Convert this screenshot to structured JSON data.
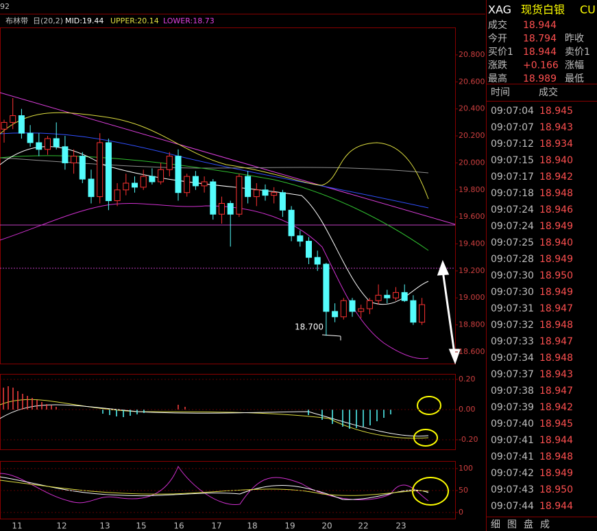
{
  "header": {
    "fragment": "92",
    "legend": {
      "name": "布林带",
      "params": "日(20,2)",
      "mid": "MID:19.44",
      "upper": "UPPER:20.14",
      "lower": "LOWER:18.73"
    }
  },
  "price_axis": [
    {
      "value": 20.8,
      "label": "20.800"
    },
    {
      "value": 20.6,
      "label": "20.600"
    },
    {
      "value": 20.4,
      "label": "20.400"
    },
    {
      "value": 20.2,
      "label": "20.200"
    },
    {
      "value": 20.0,
      "label": "20.000"
    },
    {
      "value": 19.8,
      "label": "19.800"
    },
    {
      "value": 19.6,
      "label": "19.600"
    },
    {
      "value": 19.4,
      "label": "19.400"
    },
    {
      "value": 19.2,
      "label": "19.200"
    },
    {
      "value": 19.0,
      "label": "19.000"
    },
    {
      "value": 18.8,
      "label": "18.800"
    },
    {
      "value": 18.6,
      "label": "18.600"
    }
  ],
  "annotation": {
    "value": 18.7,
    "label": "18.700"
  },
  "candles": [
    [
      20.25,
      20.32,
      20.15,
      20.3
    ],
    [
      20.3,
      20.48,
      20.25,
      20.35
    ],
    [
      20.35,
      20.4,
      20.18,
      20.22
    ],
    [
      20.22,
      20.28,
      20.12,
      20.15
    ],
    [
      20.15,
      20.22,
      20.05,
      20.1
    ],
    [
      20.1,
      20.2,
      20.06,
      20.18
    ],
    [
      20.18,
      20.3,
      20.1,
      20.12
    ],
    [
      20.12,
      20.2,
      19.95,
      20.0
    ],
    [
      20.0,
      20.1,
      19.92,
      20.05
    ],
    [
      20.05,
      20.08,
      19.85,
      19.88
    ],
    [
      19.88,
      19.95,
      19.7,
      19.75
    ],
    [
      19.75,
      20.22,
      19.7,
      20.15
    ],
    [
      20.15,
      20.18,
      19.65,
      19.72
    ],
    [
      19.72,
      19.85,
      19.68,
      19.8
    ],
    [
      19.8,
      19.92,
      19.76,
      19.85
    ],
    [
      19.85,
      19.9,
      19.78,
      19.82
    ],
    [
      19.82,
      19.95,
      19.8,
      19.9
    ],
    [
      19.9,
      19.96,
      19.84,
      19.86
    ],
    [
      19.86,
      20.0,
      19.84,
      19.95
    ],
    [
      19.95,
      20.08,
      19.9,
      20.05
    ],
    [
      20.05,
      20.1,
      19.72,
      19.78
    ],
    [
      19.78,
      19.92,
      19.75,
      19.9
    ],
    [
      19.9,
      19.94,
      19.8,
      19.83
    ],
    [
      19.83,
      19.9,
      19.78,
      19.86
    ],
    [
      19.86,
      19.88,
      19.58,
      19.62
    ],
    [
      19.62,
      19.75,
      19.55,
      19.7
    ],
    [
      19.7,
      19.72,
      19.38,
      19.62
    ],
    [
      19.62,
      19.92,
      19.6,
      19.9
    ],
    [
      19.9,
      19.94,
      19.7,
      19.75
    ],
    [
      19.75,
      19.85,
      19.68,
      19.8
    ],
    [
      19.8,
      19.84,
      19.72,
      19.76
    ],
    [
      19.76,
      19.82,
      19.7,
      19.78
    ],
    [
      19.78,
      19.8,
      19.6,
      19.65
    ],
    [
      19.65,
      19.68,
      19.42,
      19.46
    ],
    [
      19.46,
      19.5,
      19.38,
      19.42
    ],
    [
      19.42,
      19.45,
      19.25,
      19.3
    ],
    [
      19.3,
      19.35,
      19.2,
      19.25
    ],
    [
      19.25,
      19.26,
      18.72,
      18.9
    ],
    [
      18.9,
      18.96,
      18.82,
      18.86
    ],
    [
      18.86,
      19.0,
      18.84,
      18.98
    ],
    [
      18.98,
      19.0,
      18.86,
      18.9
    ],
    [
      18.9,
      18.95,
      18.85,
      18.92
    ],
    [
      18.92,
      19.0,
      18.88,
      18.98
    ],
    [
      18.98,
      19.1,
      18.95,
      19.02
    ],
    [
      19.02,
      19.06,
      18.96,
      19.0
    ],
    [
      19.0,
      19.08,
      18.98,
      19.04
    ],
    [
      19.04,
      19.1,
      18.97,
      18.98
    ],
    [
      18.98,
      19.02,
      18.8,
      18.82
    ],
    [
      18.82,
      19.0,
      18.8,
      18.95
    ]
  ],
  "macd_axis": [
    {
      "value": 0.2,
      "label": "0.20"
    },
    {
      "value": 0,
      "label": "0.00"
    },
    {
      "value": -0.2,
      "label": "-0.20"
    }
  ],
  "kdj_axis": [
    100,
    50,
    0
  ],
  "dates": [
    "11",
    "12",
    "13",
    "15",
    "16",
    "17",
    "18",
    "19",
    "20",
    "22",
    "23"
  ],
  "quote": {
    "symbol": "XAG",
    "name": "现货白银",
    "code": "CU",
    "rows": [
      [
        "成交",
        "18.944",
        ""
      ],
      [
        "今开",
        "18.794",
        "昨收"
      ],
      [
        "买价1",
        "18.944",
        "卖价1"
      ],
      [
        "涨跌",
        "+0.166",
        "涨幅"
      ],
      [
        "最高",
        "18.989",
        "最低"
      ]
    ],
    "trade_header": [
      "时间",
      "成交"
    ],
    "trades": [
      [
        "09:07:04",
        "18.945"
      ],
      [
        "09:07:07",
        "18.943"
      ],
      [
        "09:07:12",
        "18.934"
      ],
      [
        "09:07:15",
        "18.940"
      ],
      [
        "09:07:17",
        "18.942"
      ],
      [
        "09:07:18",
        "18.948"
      ],
      [
        "09:07:24",
        "18.946"
      ],
      [
        "09:07:24",
        "18.949"
      ],
      [
        "09:07:25",
        "18.940"
      ],
      [
        "09:07:28",
        "18.949"
      ],
      [
        "09:07:30",
        "18.950"
      ],
      [
        "09:07:30",
        "18.949"
      ],
      [
        "09:07:31",
        "18.947"
      ],
      [
        "09:07:32",
        "18.948"
      ],
      [
        "09:07:33",
        "18.947"
      ],
      [
        "09:07:34",
        "18.948"
      ],
      [
        "09:07:37",
        "18.943"
      ],
      [
        "09:07:38",
        "18.947"
      ],
      [
        "09:07:39",
        "18.942"
      ],
      [
        "09:07:40",
        "18.945"
      ],
      [
        "09:07:41",
        "18.944"
      ],
      [
        "09:07:41",
        "18.948"
      ],
      [
        "09:07:42",
        "18.949"
      ],
      [
        "09:07:43",
        "18.950"
      ],
      [
        "09:07:44",
        "18.944"
      ]
    ],
    "tabs": [
      "细",
      "图",
      "盘",
      "成"
    ]
  }
}
